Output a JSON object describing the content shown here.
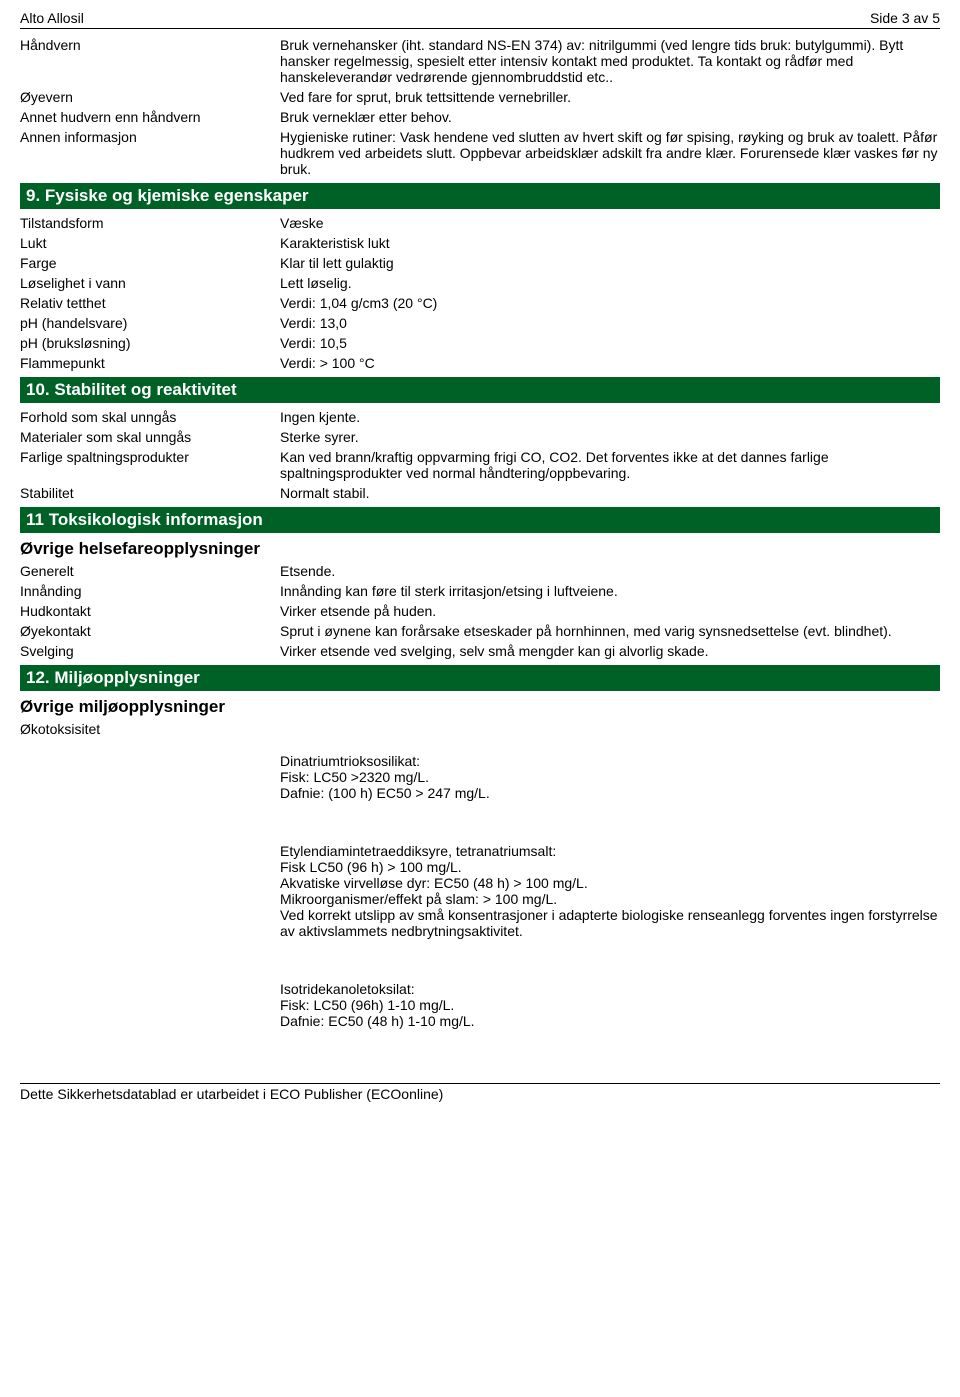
{
  "header": {
    "product": "Alto Allosil",
    "page": "Side 3 av 5"
  },
  "protection": {
    "rows": [
      {
        "label": "Håndvern",
        "value": "Bruk vernehansker (iht. standard NS-EN 374) av: nitrilgummi (ved lengre tids bruk: butylgummi). Bytt hansker regelmessig, spesielt etter intensiv kontakt med produktet. Ta kontakt og rådfør med hanskeleverandør vedrørende gjennombruddstid etc.."
      },
      {
        "label": "Øyevern",
        "value": "Ved fare for sprut, bruk tettsittende vernebriller."
      },
      {
        "label": "Annet hudvern enn håndvern",
        "value": "Bruk verneklær etter behov."
      },
      {
        "label": "Annen informasjon",
        "value": "Hygieniske rutiner: Vask hendene ved slutten av hvert skift og før spising, røyking og bruk av toalett. Påfør hudkrem ved arbeidets slutt. Oppbevar arbeidsklær adskilt fra andre klær. Forurensede klær vaskes før ny bruk."
      }
    ]
  },
  "sec9": {
    "title": "9. Fysiske og kjemiske egenskaper",
    "rows": [
      {
        "label": "Tilstandsform",
        "value": "Væske"
      },
      {
        "label": "Lukt",
        "value": "Karakteristisk lukt"
      },
      {
        "label": "Farge",
        "value": "Klar til lett gulaktig"
      },
      {
        "label": "Løselighet i vann",
        "value": "Lett løselig."
      },
      {
        "label": "Relativ tetthet",
        "value": "Verdi: 1,04 g/cm3 (20 °C)"
      },
      {
        "label": "pH (handelsvare)",
        "value": "Verdi: 13,0"
      },
      {
        "label": "pH (bruksløsning)",
        "value": "Verdi: 10,5"
      },
      {
        "label": "Flammepunkt",
        "value": "Verdi: > 100 °C"
      }
    ]
  },
  "sec10": {
    "title": "10. Stabilitet og reaktivitet",
    "rows": [
      {
        "label": "Forhold som skal unngås",
        "value": "Ingen kjente."
      },
      {
        "label": "Materialer som skal unngås",
        "value": "Sterke syrer."
      },
      {
        "label": "Farlige spaltningsprodukter",
        "value": "Kan ved brann/kraftig oppvarming frigi CO, CO2. Det forventes ikke at det dannes farlige spaltningsprodukter ved normal håndtering/oppbevaring."
      },
      {
        "label": "Stabilitet",
        "value": "Normalt stabil."
      }
    ]
  },
  "sec11": {
    "title": "11 Toksikologisk informasjon",
    "subtitle": "Øvrige helsefareopplysninger",
    "rows": [
      {
        "label": "Generelt",
        "value": "Etsende."
      },
      {
        "label": "Innånding",
        "value": "Innånding kan føre til sterk irritasjon/etsing i luftveiene."
      },
      {
        "label": "Hudkontakt",
        "value": "Virker etsende på huden."
      },
      {
        "label": "Øyekontakt",
        "value": "Sprut i øynene kan forårsake etseskader på hornhinnen, med varig synsnedsettelse (evt. blindhet)."
      },
      {
        "label": "Svelging",
        "value": "Virker etsende ved svelging, selv små mengder kan gi alvorlig skade."
      }
    ]
  },
  "sec12": {
    "title": "12. Miljøopplysninger",
    "subtitle": "Øvrige miljøopplysninger",
    "label": "Økotoksisitet",
    "para1": "Dinatriumtrioksosilikat:\nFisk: LC50 >2320 mg/L.\nDafnie: (100 h) EC50 > 247 mg/L.",
    "para2": "Etylendiamintetraeddiksyre, tetranatriumsalt:\nFisk LC50 (96 h) > 100 mg/L.\nAkvatiske virvelløse dyr: EC50 (48 h) > 100 mg/L.\nMikroorganismer/effekt på slam: > 100 mg/L.\nVed korrekt utslipp av små konsentrasjoner i adapterte biologiske renseanlegg forventes ingen forstyrrelse av aktivslammets nedbrytningsaktivitet.",
    "para3": "Isotridekanoletoksilat:\nFisk: LC50 (96h) 1-10 mg/L.\nDafnie: EC50 (48 h) 1-10 mg/L."
  },
  "footer": {
    "text": "Dette Sikkerhetsdatablad er utarbeidet i ECO Publisher (ECOonline)"
  }
}
